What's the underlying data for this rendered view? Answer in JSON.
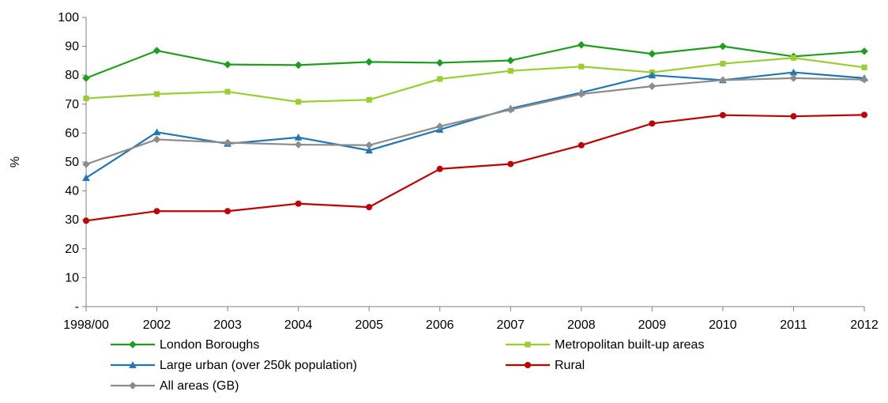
{
  "chart_data": {
    "type": "line",
    "ylabel": "%",
    "ylim": [
      0,
      100
    ],
    "yticks": [
      "-",
      "10",
      "20",
      "30",
      "40",
      "50",
      "60",
      "70",
      "80",
      "90",
      "100"
    ],
    "categories": [
      "1998/00",
      "2002",
      "2003",
      "2004",
      "2005",
      "2006",
      "2007",
      "2008",
      "2009",
      "2010",
      "2011",
      "2012"
    ],
    "grid": false,
    "legend": "bottom",
    "series": [
      {
        "name": "London Boroughs",
        "color": "#1e9e1e",
        "marker": "diamond",
        "values": [
          79,
          88.5,
          83.7,
          83.5,
          84.6,
          84.3,
          85.1,
          90.5,
          87.4,
          90,
          86.5,
          88.3
        ]
      },
      {
        "name": "Metropolitan built-up areas",
        "color": "#9acd32",
        "marker": "square",
        "values": [
          72,
          73.5,
          74.3,
          70.8,
          71.5,
          78.7,
          81.5,
          83,
          81,
          84,
          86,
          82.7
        ]
      },
      {
        "name": "Large urban (over 250k population)",
        "color": "#1f77b4",
        "marker": "triangle",
        "values": [
          44.5,
          60.3,
          56.3,
          58.5,
          54,
          61.2,
          68.5,
          74,
          80,
          78.3,
          81,
          79
        ]
      },
      {
        "name": "Rural",
        "color": "#c00000",
        "marker": "circle",
        "values": [
          29.7,
          33,
          33,
          35.6,
          34.4,
          47.6,
          49.3,
          55.8,
          63.3,
          66.2,
          65.8,
          66.3
        ]
      },
      {
        "name": "All areas (GB)",
        "color": "#8c8c8c",
        "marker": "diamond",
        "values": [
          49.2,
          57.8,
          56.7,
          56,
          55.8,
          62.3,
          68.1,
          73.5,
          76.2,
          78.3,
          79,
          78.5
        ]
      }
    ]
  }
}
